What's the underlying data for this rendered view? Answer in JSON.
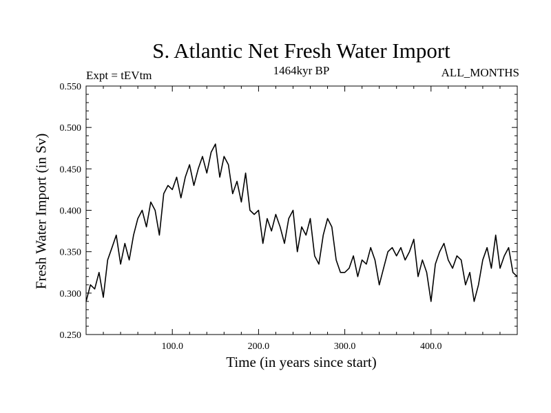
{
  "chart_data": {
    "type": "line",
    "title": "S. Atlantic Net Fresh Water Import",
    "subtitle_left": "Expt = tEVtm",
    "subtitle_center": "1464kyr BP",
    "subtitle_right": "ALL_MONTHS",
    "xlabel": "Time (in years since start)",
    "ylabel": "Fresh Water Import (in Sv)",
    "xlim": [
      0,
      500
    ],
    "ylim": [
      0.25,
      0.55
    ],
    "xticks": [
      100,
      200,
      300,
      400
    ],
    "xtick_labels": [
      "100.0",
      "200.0",
      "300.0",
      "400.0"
    ],
    "yticks": [
      0.25,
      0.3,
      0.35,
      0.4,
      0.45,
      0.5,
      0.55
    ],
    "ytick_labels": [
      "0.250",
      "0.300",
      "0.350",
      "0.400",
      "0.450",
      "0.500",
      "0.550"
    ],
    "grid": false,
    "series": [
      {
        "name": "Net Fresh Water Import",
        "color": "#000000",
        "x": [
          0,
          5,
          10,
          15,
          20,
          25,
          30,
          35,
          40,
          45,
          50,
          55,
          60,
          65,
          70,
          75,
          80,
          85,
          90,
          95,
          100,
          105,
          110,
          115,
          120,
          125,
          130,
          135,
          140,
          145,
          150,
          155,
          160,
          165,
          170,
          175,
          180,
          185,
          190,
          195,
          200,
          205,
          210,
          215,
          220,
          225,
          230,
          235,
          240,
          245,
          250,
          255,
          260,
          265,
          270,
          275,
          280,
          285,
          290,
          295,
          300,
          305,
          310,
          315,
          320,
          325,
          330,
          335,
          340,
          345,
          350,
          355,
          360,
          365,
          370,
          375,
          380,
          385,
          390,
          395,
          400,
          405,
          410,
          415,
          420,
          425,
          430,
          435,
          440,
          445,
          450,
          455,
          460,
          465,
          470,
          475,
          480,
          485,
          490,
          495,
          500
        ],
        "y": [
          0.29,
          0.31,
          0.305,
          0.325,
          0.295,
          0.34,
          0.355,
          0.37,
          0.335,
          0.36,
          0.34,
          0.37,
          0.39,
          0.4,
          0.38,
          0.41,
          0.4,
          0.37,
          0.42,
          0.43,
          0.425,
          0.44,
          0.415,
          0.44,
          0.455,
          0.43,
          0.45,
          0.465,
          0.445,
          0.47,
          0.48,
          0.44,
          0.465,
          0.455,
          0.42,
          0.435,
          0.41,
          0.445,
          0.4,
          0.395,
          0.4,
          0.36,
          0.39,
          0.375,
          0.395,
          0.38,
          0.36,
          0.39,
          0.4,
          0.35,
          0.38,
          0.37,
          0.39,
          0.345,
          0.335,
          0.37,
          0.39,
          0.38,
          0.34,
          0.325,
          0.325,
          0.33,
          0.345,
          0.32,
          0.34,
          0.335,
          0.355,
          0.34,
          0.31,
          0.33,
          0.35,
          0.355,
          0.345,
          0.355,
          0.34,
          0.35,
          0.365,
          0.32,
          0.34,
          0.325,
          0.29,
          0.335,
          0.35,
          0.36,
          0.34,
          0.33,
          0.345,
          0.34,
          0.31,
          0.325,
          0.29,
          0.31,
          0.34,
          0.355,
          0.33,
          0.37,
          0.33,
          0.345,
          0.355,
          0.325,
          0.32
        ]
      }
    ]
  }
}
